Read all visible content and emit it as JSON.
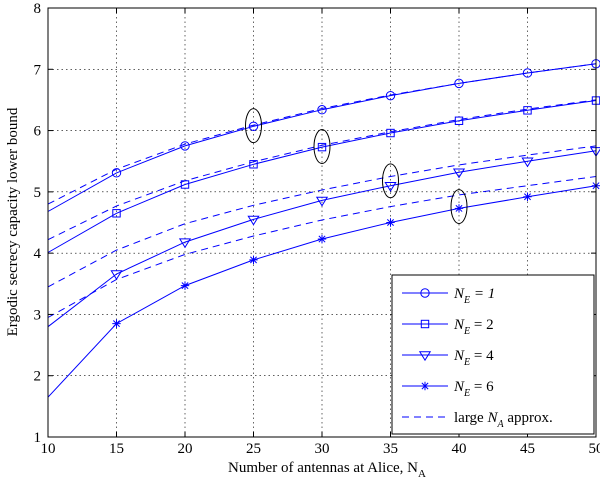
{
  "chart_data": {
    "type": "line",
    "xlabel": "Number of antennas at Alice, N",
    "xlabel_sub": "A",
    "ylabel": "Ergodic secrecy capacity lower bound",
    "xlim": [
      10,
      50
    ],
    "ylim": [
      1,
      8
    ],
    "x_ticks": [
      "10",
      "15",
      "20",
      "25",
      "30",
      "35",
      "40",
      "45",
      "50"
    ],
    "y_ticks": [
      "1",
      "2",
      "3",
      "4",
      "5",
      "6",
      "7",
      "8"
    ],
    "grid": true,
    "legend_position": "bottom-right",
    "line_color": "#0000ff",
    "x": [
      10,
      15,
      20,
      25,
      30,
      35,
      40,
      45,
      50
    ],
    "series": [
      {
        "name_pre": "N",
        "name_sub": "E",
        "name_post": " = 1",
        "name_post_italic": true,
        "marker": "circle",
        "values": [
          4.68,
          5.31,
          5.75,
          6.07,
          6.34,
          6.57,
          6.77,
          6.94,
          7.09
        ],
        "approx": [
          4.8,
          5.37,
          5.78,
          6.09,
          6.36,
          6.58,
          6.77,
          6.94,
          7.09
        ]
      },
      {
        "name_pre": "N",
        "name_sub": "E",
        "name_post": " = 2",
        "name_post_italic": false,
        "marker": "square",
        "values": [
          4.01,
          4.65,
          5.12,
          5.45,
          5.73,
          5.96,
          6.16,
          6.33,
          6.49
        ],
        "approx": [
          4.22,
          4.77,
          5.18,
          5.49,
          5.76,
          5.98,
          6.18,
          6.35,
          6.5
        ]
      },
      {
        "name_pre": "N",
        "name_sub": "E",
        "name_post": " = 4",
        "name_post_italic": false,
        "marker": "triangle-down",
        "values": [
          2.8,
          3.66,
          4.18,
          4.55,
          4.86,
          5.1,
          5.32,
          5.5,
          5.67
        ],
        "approx": [
          3.45,
          4.05,
          4.48,
          4.78,
          5.03,
          5.25,
          5.44,
          5.6,
          5.75
        ]
      },
      {
        "name_pre": "N",
        "name_sub": "E",
        "name_post": " = 6",
        "name_post_italic": false,
        "marker": "star",
        "values": [
          1.65,
          2.85,
          3.47,
          3.89,
          4.23,
          4.5,
          4.73,
          4.92,
          5.1
        ],
        "approx": [
          2.95,
          3.57,
          3.98,
          4.28,
          4.54,
          4.76,
          4.95,
          5.1,
          5.25
        ]
      }
    ],
    "approx_legend": {
      "pre": "large ",
      "italic": "N",
      "sub": "A",
      "post": " approx."
    },
    "annotation_ellipses": [
      {
        "x": 25,
        "y": 6.08
      },
      {
        "x": 30,
        "y": 5.74
      },
      {
        "x": 35,
        "y": 5.18
      },
      {
        "x": 40,
        "y": 4.76
      }
    ]
  }
}
